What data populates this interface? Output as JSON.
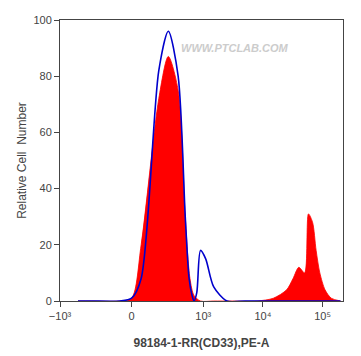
{
  "chart_data": {
    "type": "line",
    "xlabel": "98184-1-RR(CD33),PE-A",
    "ylabel": "Relative Cell  Number",
    "annotations": [
      {
        "text": "WWW.PTCLAB.COM"
      }
    ],
    "series": [
      {
        "type": "area",
        "color": "#ff0000",
        "x": [
          -500,
          -300,
          -100,
          0,
          80,
          180,
          260,
          380,
          500,
          600,
          700,
          900,
          1500,
          3000,
          8000,
          15000,
          25000,
          32000,
          40000,
          50000,
          58000,
          68000,
          78000,
          90000,
          110000,
          140000,
          200000
        ],
        "values": [
          0,
          0,
          0,
          1,
          20,
          72,
          87,
          75,
          30,
          8,
          2,
          0,
          0,
          0,
          0,
          1,
          4,
          8,
          12,
          10,
          31,
          28,
          18,
          10,
          4,
          1,
          0
        ]
      },
      {
        "type": "line",
        "color": "#0000cc",
        "x": [
          -500,
          -300,
          -100,
          0,
          80,
          180,
          260,
          380,
          500,
          580,
          650,
          700,
          780,
          900,
          1100,
          1500,
          2500,
          5000,
          20000,
          200000
        ],
        "values": [
          0,
          0,
          0,
          1,
          8,
          82,
          96,
          80,
          30,
          8,
          2,
          0,
          3,
          18,
          15,
          5,
          0,
          0,
          0,
          0
        ]
      }
    ],
    "xlim": [
      -1000,
      220000
    ],
    "xticks": [
      {
        "value": -1000,
        "label": "−10³"
      },
      0,
      {
        "value": 1000,
        "label": "10³"
      },
      {
        "value": 10000,
        "label": "10⁴"
      },
      {
        "value": 100000,
        "label": "10⁵"
      }
    ],
    "ylim": [
      0,
      100
    ],
    "yticks": [
      0,
      20,
      40,
      60,
      80,
      100
    ],
    "grid": false
  }
}
